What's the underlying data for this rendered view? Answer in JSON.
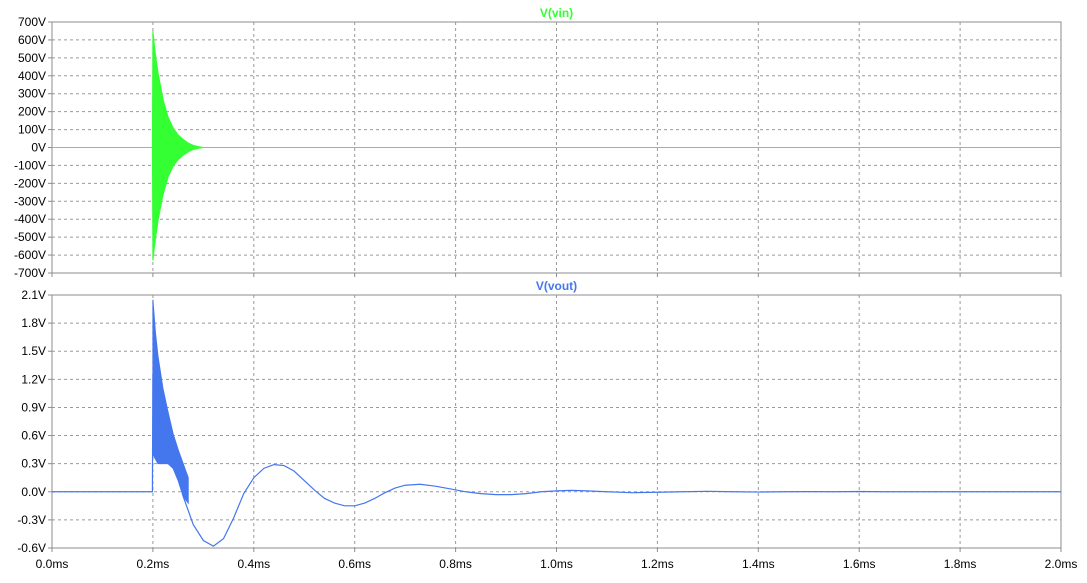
{
  "colors": {
    "vin": "#33ff33",
    "vout": "#4477ee",
    "grid": "#9a9a9a",
    "frame": "#8c8c8c",
    "background": "#ffffff"
  },
  "chart_data": [
    {
      "type": "line",
      "title": "V(vin)",
      "ylim": [
        -700,
        700
      ],
      "yticks": [
        700,
        600,
        500,
        400,
        300,
        200,
        100,
        0,
        -100,
        -200,
        -300,
        -400,
        -500,
        -600,
        -700
      ],
      "ytick_labels": [
        "700V",
        "600V",
        "500V",
        "400V",
        "300V",
        "200V",
        "100V",
        "0V",
        "-100V",
        "-200V",
        "-300V",
        "-400V",
        "-500V",
        "-600V",
        "-700V"
      ],
      "xlim": [
        0.0,
        2.0
      ],
      "xticks": [
        0.0,
        0.2,
        0.4,
        0.6,
        0.8,
        1.0,
        1.2,
        1.4,
        1.6,
        1.8,
        2.0
      ],
      "grid": true,
      "series": [
        {
          "name": "V(vin)",
          "color": "#33ff33",
          "envelope": {
            "x": [
              0.0,
              0.199,
              0.2,
              0.205,
              0.21,
              0.22,
              0.23,
              0.24,
              0.25,
              0.26,
              0.27,
              0.28,
              0.29,
              0.3,
              2.0
            ],
            "upper": [
              0,
              0,
              650,
              520,
              420,
              270,
              170,
              110,
              70,
              45,
              25,
              12,
              5,
              0,
              0
            ],
            "lower": [
              0,
              0,
              -630,
              -510,
              -410,
              -265,
              -165,
              -105,
              -68,
              -43,
              -24,
              -11,
              -5,
              0,
              0
            ]
          }
        }
      ]
    },
    {
      "type": "line",
      "title": "V(vout)",
      "ylim": [
        -0.6,
        2.1
      ],
      "yticks": [
        2.1,
        1.8,
        1.5,
        1.2,
        0.9,
        0.6,
        0.3,
        0.0,
        -0.3,
        -0.6
      ],
      "ytick_labels": [
        "2.1V",
        "1.8V",
        "1.5V",
        "1.2V",
        "0.9V",
        "0.6V",
        "0.3V",
        "0.0V",
        "-0.3V",
        "-0.6V"
      ],
      "xlim": [
        0.0,
        2.0
      ],
      "xticks": [
        0.0,
        0.2,
        0.4,
        0.6,
        0.8,
        1.0,
        1.2,
        1.4,
        1.6,
        1.8,
        2.0
      ],
      "xtick_labels": [
        "0.0ms",
        "0.2ms",
        "0.4ms",
        "0.6ms",
        "0.8ms",
        "1.0ms",
        "1.2ms",
        "1.4ms",
        "1.6ms",
        "1.8ms",
        "2.0ms"
      ],
      "grid": true,
      "series": [
        {
          "name": "V(vout)",
          "color": "#4477ee",
          "x": [
            0.0,
            0.199,
            0.2,
            0.22,
            0.24,
            0.26,
            0.28,
            0.3,
            0.32,
            0.34,
            0.36,
            0.38,
            0.4,
            0.42,
            0.44,
            0.46,
            0.48,
            0.5,
            0.52,
            0.54,
            0.56,
            0.58,
            0.6,
            0.62,
            0.64,
            0.66,
            0.68,
            0.7,
            0.73,
            0.76,
            0.79,
            0.82,
            0.85,
            0.88,
            0.91,
            0.94,
            0.97,
            1.0,
            1.03,
            1.06,
            1.1,
            1.15,
            1.2,
            1.25,
            1.3,
            1.35,
            1.4,
            1.45,
            1.5,
            1.55,
            1.6,
            1.65,
            1.7,
            2.0
          ],
          "y": [
            0.0,
            0.0,
            1.25,
            0.7,
            0.45,
            -0.05,
            -0.35,
            -0.52,
            -0.58,
            -0.5,
            -0.28,
            -0.02,
            0.15,
            0.25,
            0.29,
            0.28,
            0.22,
            0.12,
            0.02,
            -0.07,
            -0.12,
            -0.15,
            -0.15,
            -0.12,
            -0.07,
            -0.01,
            0.04,
            0.07,
            0.08,
            0.06,
            0.03,
            0.0,
            -0.02,
            -0.03,
            -0.03,
            -0.02,
            0.0,
            0.01,
            0.015,
            0.01,
            0.0,
            -0.01,
            -0.005,
            0.0,
            0.005,
            0.0,
            -0.003,
            0.0,
            0.002,
            0.0,
            0.003,
            0.0,
            0.0,
            0.0
          ],
          "oscillation_envelope": {
            "x": [
              0.2,
              0.205,
              0.21,
              0.22,
              0.23,
              0.24,
              0.25,
              0.26,
              0.27
            ],
            "upper": [
              2.05,
              1.7,
              1.45,
              1.1,
              0.85,
              0.62,
              0.45,
              0.3,
              0.15
            ],
            "lower": [
              0.4,
              0.35,
              0.3,
              0.3,
              0.3,
              0.25,
              0.12,
              -0.05,
              -0.12
            ]
          }
        }
      ]
    }
  ]
}
